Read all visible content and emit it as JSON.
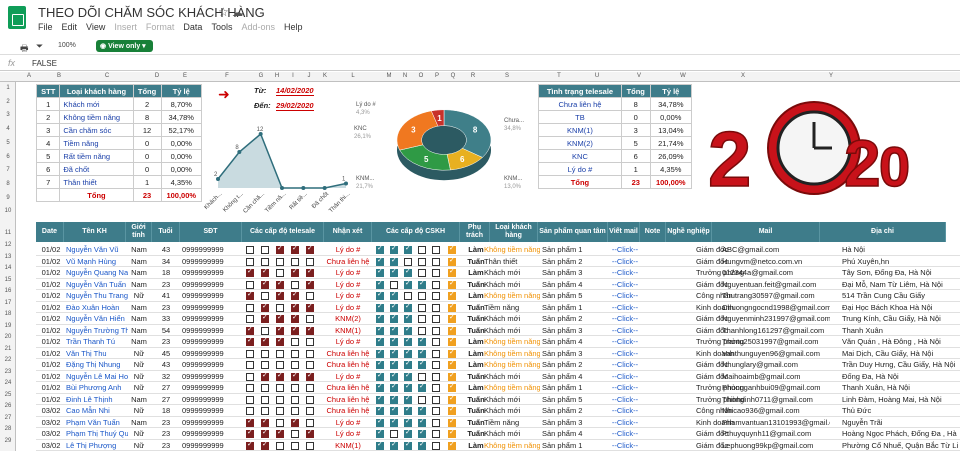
{
  "app": {
    "title": "THEO DÕI CHĂM SÓC KHÁCH HÀNG",
    "menu": [
      "File",
      "Edit",
      "View",
      "Insert",
      "Format",
      "Data",
      "Tools",
      "Add-ons",
      "Help"
    ],
    "zoom": "100%",
    "view_only": "View only",
    "formula_value": "FALSE"
  },
  "columns": [
    "A",
    "B",
    "C",
    "D",
    "E",
    "F",
    "G",
    "H",
    "I",
    "J",
    "K",
    "L",
    "M",
    "N",
    "O",
    "P",
    "Q",
    "R",
    "S",
    "T",
    "U",
    "V",
    "W",
    "X",
    "Y"
  ],
  "stat": {
    "headers": [
      "STT",
      "Loại khách hàng",
      "Tổng",
      "Tỷ lệ"
    ],
    "rows": [
      [
        "1",
        "Khách mới",
        "2",
        "8,70%"
      ],
      [
        "2",
        "Không tiềm năng",
        "8",
        "34,78%"
      ],
      [
        "3",
        "Cần chăm sóc",
        "12",
        "52,17%"
      ],
      [
        "4",
        "Tiềm năng",
        "0",
        "0,00%"
      ],
      [
        "5",
        "Rất tiềm năng",
        "0",
        "0,00%"
      ],
      [
        "6",
        "Đã chốt",
        "0",
        "0,00%"
      ],
      [
        "7",
        "Thân thiết",
        "1",
        "4,35%"
      ]
    ],
    "total": [
      "Tổng",
      "23",
      "100,00%"
    ]
  },
  "dates": {
    "from_label": "Từ:",
    "from": "14/02/2020",
    "to_label": "Đến:",
    "to": "29/02/2020"
  },
  "line_chart": {
    "labels": [
      "Khách...",
      "Không t...",
      "Cần chă...",
      "Tiềm nă...",
      "Rất tiề...",
      "Đã chốt",
      "Thân thi..."
    ],
    "values": [
      2,
      8,
      12,
      0,
      0,
      0,
      1
    ],
    "ticks": [
      "12",
      "8",
      "2",
      "1"
    ]
  },
  "donut": {
    "labels": [
      "Lý do #",
      "4,3%",
      "KNC",
      "26,1%",
      "Chưa...",
      "34,8%",
      "KNM...",
      "21,7%",
      "KNM...",
      "13,0%"
    ],
    "slice_labels": [
      "8",
      "6",
      "5",
      "3",
      "1"
    ]
  },
  "tele": {
    "headers": [
      "Tình trạng telesale",
      "Tổng",
      "Tỷ lệ"
    ],
    "rows": [
      [
        "Chưa liên hệ",
        "8",
        "34,78%"
      ],
      [
        "TB",
        "0",
        "0,00%"
      ],
      [
        "KNM(1)",
        "3",
        "13,04%"
      ],
      [
        "KNM(2)",
        "5",
        "21,74%"
      ],
      [
        "KNC",
        "6",
        "26,09%"
      ],
      [
        "Lý do #",
        "1",
        "4,35%"
      ]
    ],
    "total": [
      "Tổng",
      "23",
      "100,00%"
    ]
  },
  "logo2020": {
    "text": "2020"
  },
  "main": {
    "headers": [
      "Date",
      "Tên KH",
      "Giới tính",
      "Tuổi",
      "SĐT",
      "Các cấp độ telesale",
      "Nhận xét",
      "Các cấp độ CSKH",
      "Phụ trách",
      "Loại khách hàng",
      "Sản phẩm quan tâm",
      "Viết mail",
      "Note",
      "Nghề nghiệp",
      "Mail",
      "Địa chỉ"
    ],
    "rows": [
      [
        "01/02",
        "Nguyễn Văn Vũ",
        "Nam",
        "43",
        "0999999999",
        "Lý do #",
        "Làm",
        "Không tiềm năng",
        "Sản phẩm 1",
        "--Click--",
        "",
        "Giám đốc",
        "ABC@gmail.com",
        "Hà Nội"
      ],
      [
        "01/02",
        "Vũ Mạnh Hùng",
        "Nam",
        "34",
        "0999999999",
        "Chưa liên hệ",
        "Tuấn",
        "Thân thiết",
        "Sản phẩm 2",
        "--Click--",
        "",
        "Giám đốc",
        "Hungvm@netco.com.vn",
        "Phú Xuyên,hn"
      ],
      [
        "01/02",
        "Nguyễn Quang Nam",
        "Nam",
        "18",
        "0999999999",
        "Lý do #",
        "Làm",
        "Khách mới",
        "Sản phẩm 3",
        "--Click--",
        "",
        "Trưởng phòng",
        "012344a@gmail.com",
        "Tây Sơn, Đống Đa, Hà Nội"
      ],
      [
        "01/02",
        "Nguyễn Văn Tuấn",
        "Nam",
        "23",
        "0999999999",
        "Lý do #",
        "Tuấn",
        "Khách mới",
        "Sản phẩm 4",
        "--Click--",
        "",
        "Giám đốc",
        "Nguyentuan.feit@gmail.com",
        "Đại Mỗ, Nam Từ Liêm, Hà Nội"
      ],
      [
        "01/02",
        "Nguyễn Thu Trang",
        "Nữ",
        "41",
        "0999999999",
        "Lý do #",
        "Làm",
        "Không tiềm năng",
        "Sản phẩm 5",
        "--Click--",
        "",
        "Công nhân",
        "Thutrang30597@gmail.com",
        "514 Trần Cung Cầu Giấy"
      ],
      [
        "01/02",
        "Đào Xuân Hoàn",
        "Nam",
        "23",
        "0999999999",
        "Lý do #",
        "Tuấn",
        "Tiềm năng",
        "Sản phẩm 1",
        "--Click--",
        "",
        "Kinh doanh",
        "Chuongngocnd1998@gmail.com",
        "Đại Học Bách Khoa Hà Nội"
      ],
      [
        "01/02",
        "Nguyễn Văn Hiển",
        "Nam",
        "33",
        "0999999999",
        "KNM(2)",
        "Tuấn",
        "Khách mới",
        "Sản phẩm 2",
        "--Click--",
        "",
        "Giám đốc",
        "Nguyenminh231997@gmail.com",
        "Trung Kính, Cầu Giấy, Hà Nội"
      ],
      [
        "01/02",
        "Nguyễn Trường Thành",
        "Nam",
        "54",
        "0999999999",
        "KNM(1)",
        "Tuấn",
        "Khách mới",
        "Sản phẩm 3",
        "--Click--",
        "",
        "Giám đốc",
        "Thanhlong161297@gmail.com",
        "Thanh Xuân"
      ],
      [
        "01/02",
        "Trần Thanh Tú",
        "Nam",
        "23",
        "0999999999",
        "Lý do #",
        "Làm",
        "Không tiềm năng",
        "Sản phẩm 4",
        "--Click--",
        "",
        "Trưởng phòng",
        "Trantu25031997@gmail.com",
        "Văn Quán , Hà Đông , Hà Nội"
      ],
      [
        "01/02",
        "Văn Thị Thu",
        "Nữ",
        "45",
        "0999999999",
        "Chưa liên hệ",
        "Làm",
        "Không tiềm năng",
        "Sản phẩm 3",
        "--Click--",
        "",
        "Kinh doanh",
        "Vanthunguyen96@gmail.com",
        "Mai Dịch, Cầu Giấy, Hà Nội"
      ],
      [
        "01/02",
        "Đặng Thị Nhung",
        "Nữ",
        "43",
        "0999999999",
        "Chưa liên hệ",
        "Làm",
        "Không tiềm năng",
        "Sản phẩm 2",
        "--Click--",
        "",
        "Giám đốc",
        "Nhunglary@gmail.com",
        "Trần Duy Hưng, Cầu Giấy, Hà Nội"
      ],
      [
        "01/02",
        "Nguyễn Lê Mai Hoài",
        "Nữ",
        "32",
        "0999999999",
        "Lý do #",
        "Tuấn",
        "Khách mới",
        "Sản phẩm 4",
        "--Click--",
        "",
        "Giám đốc",
        "Maihoaimb@gmail.com",
        "Đống Đa, Hà Nội"
      ],
      [
        "01/02",
        "Bùi Phương Anh",
        "Nữ",
        "27",
        "0999999999",
        "Chưa liên hệ",
        "Làm",
        "Không tiềm năng",
        "Sản phẩm 1",
        "--Click--",
        "",
        "Trưởng phòng",
        "Phuonganhbui09@gmail.com",
        "Thanh Xuân, Hà Nội"
      ],
      [
        "01/02",
        "Đinh Lê Thịnh",
        "Nam",
        "27",
        "0999999999",
        "Chưa liên hệ",
        "Tuấn",
        "Khách mới",
        "Sản phẩm 5",
        "--Click--",
        "",
        "Trưởng phòng",
        "Thinhdinh0711@gmail.com",
        "Linh Đàm, Hoàng Mai, Hà Nội"
      ],
      [
        "03/02",
        "Cao Mẫn Nhi",
        "Nữ",
        "18",
        "0999999999",
        "Chưa liên hệ",
        "Tuấn",
        "Khách mới",
        "Sản phẩm 2",
        "--Click--",
        "",
        "Công nhân",
        "Nhicao936@gmail.com",
        "Thủ Đức"
      ],
      [
        "03/02",
        "Phạm Văn Tuấn",
        "Nam",
        "23",
        "0999999999",
        "Lý do #",
        "Tuấn",
        "Tiềm năng",
        "Sản phẩm 3",
        "--Click--",
        "",
        "Kinh doanh",
        "Phamvantuan13101993@gmail.com",
        "Nguyễn Trãi"
      ],
      [
        "03/02",
        "Phạm Thị Thuý Quỳnh",
        "Nữ",
        "23",
        "0999999999",
        "Lý do #",
        "Tuấn",
        "Khách mới",
        "Sản phẩm 4",
        "--Click--",
        "",
        "Giám đốc",
        "Pthuyquynh11@gmail.com",
        "Hoàng Ngọc Phách, Đống Đa , Hà"
      ],
      [
        "03/02",
        "Lê Thị Phượng",
        "Nữ",
        "23",
        "0999999999",
        "KNM(1)",
        "Làm",
        "Không tiềm năng",
        "Sản phẩm 1",
        "--Click--",
        "",
        "Giám đốc",
        "Lephuong99kp@gmail.com",
        "Phường Cổ Nhuế, Quận Bắc Từ Li"
      ]
    ]
  }
}
